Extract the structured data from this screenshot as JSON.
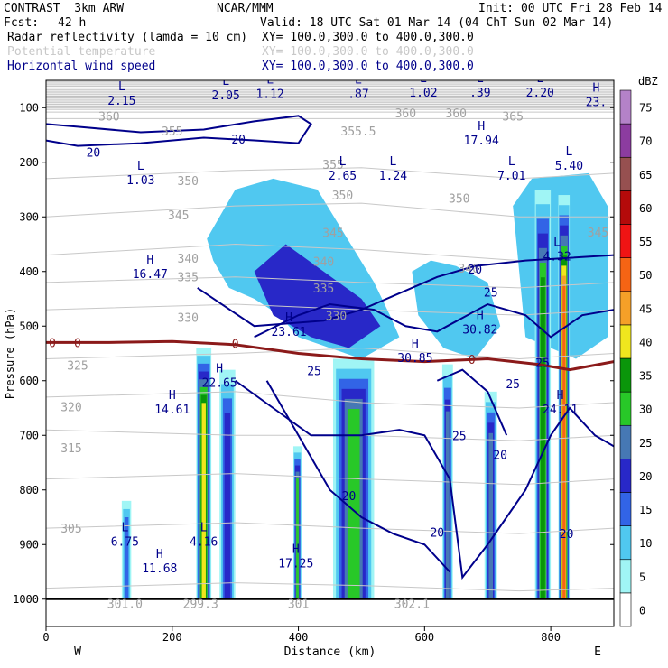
{
  "header": {
    "model": "CONTRAST  3km ARW",
    "org": "NCAR/MMM",
    "init": "Init: 00 UTC Fri 28 Feb 14",
    "fcst_label": "Fcst:",
    "fcst_value": "42 h",
    "valid": "Valid: 18 UTC Sat 01 Mar 14 (04 ChT Sun 02 Mar 14)",
    "fields": [
      {
        "name": "Radar reflectivity (lamda = 10 cm)",
        "xy": "XY= 100.0,300.0 to 400.0,300.0",
        "color": "#000000"
      },
      {
        "name": "Potential temperature",
        "xy": "XY= 100.0,300.0 to 400.0,300.0",
        "color": "#c8c8c8"
      },
      {
        "name": "Horizontal wind speed",
        "xy": "XY= 100.0,300.0 to 400.0,300.0",
        "color": "#00008b"
      }
    ]
  },
  "chart_data": {
    "type": "cross-section",
    "xlabel": "Distance (km)",
    "ylabel": "Pressure (hPa)",
    "xlim": [
      0,
      900
    ],
    "ylim": [
      1050,
      50
    ],
    "xticks": [
      0,
      200,
      400,
      600,
      800
    ],
    "yticks": [
      100,
      200,
      300,
      400,
      500,
      600,
      700,
      800,
      900,
      1000
    ],
    "west_label": "W",
    "east_label": "E",
    "colorbar": {
      "unit": "dBZ",
      "levels": [
        0,
        5,
        10,
        15,
        20,
        25,
        30,
        35,
        40,
        45,
        50,
        55,
        60,
        65,
        70,
        75
      ],
      "colors": [
        "#ffffff",
        "#a0f5f5",
        "#50c8f0",
        "#3264e6",
        "#2828c8",
        "#4678b4",
        "#28c828",
        "#0a960a",
        "#f0e61e",
        "#f5a028",
        "#f56414",
        "#f01414",
        "#b40a0a",
        "#965050",
        "#8c3ca0",
        "#b482c8"
      ]
    },
    "reflectivity_cells": [
      {
        "x0": 120,
        "x1": 135,
        "p_top": 820,
        "p_bot": 1000,
        "dbz": 15
      },
      {
        "x0": 238,
        "x1": 262,
        "p_top": 540,
        "p_bot": 1000,
        "dbz": 40
      },
      {
        "x0": 275,
        "x1": 300,
        "p_top": 580,
        "p_bot": 1000,
        "dbz": 20
      },
      {
        "x0": 392,
        "x1": 405,
        "p_top": 720,
        "p_bot": 1000,
        "dbz": 30
      },
      {
        "x0": 455,
        "x1": 520,
        "p_top": 560,
        "p_bot": 1000,
        "dbz": 30
      },
      {
        "x0": 628,
        "x1": 645,
        "p_top": 570,
        "p_bot": 1000,
        "dbz": 25
      },
      {
        "x0": 695,
        "x1": 715,
        "p_top": 620,
        "p_bot": 1000,
        "dbz": 25
      },
      {
        "x0": 775,
        "x1": 800,
        "p_top": 250,
        "p_bot": 1000,
        "dbz": 35
      },
      {
        "x0": 812,
        "x1": 830,
        "p_top": 260,
        "p_bot": 1000,
        "dbz": 50
      }
    ],
    "reflectivity_anvils": [
      {
        "x": [
          255,
          300,
          360,
          430,
          520,
          545,
          560,
          500,
          450,
          400,
          370,
          330,
          290,
          265
        ],
        "p": [
          340,
          250,
          230,
          250,
          420,
          480,
          520,
          560,
          540,
          520,
          480,
          450,
          430,
          380
        ],
        "dbz": 10
      },
      {
        "x": [
          330,
          380,
          440,
          500,
          530,
          480,
          420,
          360
        ],
        "p": [
          400,
          350,
          400,
          450,
          500,
          540,
          520,
          480
        ],
        "dbz": 20
      },
      {
        "x": [
          580,
          610,
          650,
          700,
          720,
          680,
          630,
          590
        ],
        "p": [
          400,
          380,
          390,
          420,
          500,
          560,
          540,
          480
        ],
        "dbz": 10
      },
      {
        "x": [
          740,
          770,
          860,
          890,
          890,
          840,
          760
        ],
        "p": [
          280,
          230,
          220,
          280,
          520,
          560,
          520
        ],
        "dbz": 10
      }
    ],
    "freezing_level": {
      "label": "0",
      "x": [
        0,
        100,
        200,
        300,
        400,
        500,
        600,
        700,
        780,
        830,
        900
      ],
      "p": [
        530,
        530,
        528,
        534,
        550,
        560,
        565,
        560,
        570,
        580,
        565
      ]
    },
    "theta_contours": [
      {
        "label": "365",
        "x": [
          0,
          900
        ],
        "p": [
          108,
          108
        ]
      },
      {
        "label": "360",
        "x": [
          0,
          900
        ],
        "p": [
          120,
          120
        ]
      },
      {
        "label": "355",
        "x": [
          0,
          900
        ],
        "p": [
          150,
          150
        ]
      },
      {
        "label": "350",
        "x": [
          0,
          300,
          500,
          750,
          900
        ],
        "p": [
          230,
          215,
          210,
          230,
          220
        ]
      },
      {
        "label": "345",
        "x": [
          0,
          300,
          500,
          750,
          900
        ],
        "p": [
          300,
          280,
          275,
          300,
          300
        ]
      },
      {
        "label": "340",
        "x": [
          0,
          300,
          500,
          750,
          900
        ],
        "p": [
          370,
          350,
          360,
          380,
          370
        ]
      },
      {
        "label": "335",
        "x": [
          0,
          300,
          500,
          750,
          900
        ],
        "p": [
          420,
          410,
          420,
          430,
          420
        ]
      },
      {
        "label": "330",
        "x": [
          0,
          300,
          500,
          750,
          900
        ],
        "p": [
          470,
          460,
          470,
          480,
          470
        ]
      },
      {
        "label": "325",
        "x": [
          0,
          300,
          500,
          750,
          900
        ],
        "p": [
          560,
          550,
          540,
          560,
          550
        ]
      },
      {
        "label": "320",
        "x": [
          0,
          300,
          500,
          750,
          900
        ],
        "p": [
          630,
          620,
          640,
          650,
          640
        ]
      },
      {
        "label": "315",
        "x": [
          0,
          300,
          500,
          750,
          900
        ],
        "p": [
          690,
          700,
          700,
          710,
          700
        ]
      },
      {
        "label": "310",
        "x": [
          0,
          300,
          500,
          750,
          900
        ],
        "p": [
          780,
          770,
          780,
          790,
          780
        ]
      },
      {
        "label": "305",
        "x": [
          0,
          300,
          500,
          750,
          900
        ],
        "p": [
          870,
          860,
          870,
          880,
          870
        ]
      },
      {
        "label": "300",
        "x": [
          0,
          300,
          500,
          750,
          900
        ],
        "p": [
          980,
          970,
          975,
          985,
          980
        ]
      }
    ],
    "wind_contours": [
      {
        "label": "20",
        "x": [
          0,
          50,
          150,
          250,
          330,
          400,
          420,
          400,
          330,
          250,
          150,
          50,
          0
        ],
        "p": [
          130,
          135,
          145,
          140,
          125,
          115,
          130,
          165,
          160,
          155,
          165,
          170,
          160
        ]
      },
      {
        "label": "20",
        "x": [
          240,
          330,
          440,
          500,
          560,
          620,
          680,
          760,
          900
        ],
        "p": [
          430,
          500,
          490,
          470,
          440,
          410,
          390,
          380,
          370
        ]
      },
      {
        "label": "25",
        "x": [
          330,
          400,
          450,
          520,
          570,
          620,
          700,
          760,
          800,
          850,
          900
        ],
        "p": [
          520,
          480,
          460,
          470,
          500,
          510,
          460,
          480,
          520,
          480,
          470
        ]
      },
      {
        "label": "20",
        "x": [
          300,
          360,
          420,
          500,
          560,
          600,
          640,
          660,
          700,
          760,
          800,
          830,
          870,
          900
        ],
        "p": [
          600,
          650,
          700,
          700,
          690,
          700,
          780,
          960,
          900,
          800,
          700,
          650,
          700,
          720
        ]
      },
      {
        "label": "20",
        "x": [
          350,
          400,
          450,
          500,
          550,
          600,
          640
        ],
        "p": [
          600,
          700,
          800,
          850,
          880,
          900,
          950
        ]
      },
      {
        "label": "25",
        "x": [
          620,
          660,
          700,
          730
        ],
        "p": [
          600,
          580,
          620,
          700
        ]
      }
    ],
    "hl_labels": [
      {
        "letter": "L",
        "value": "2.15",
        "x": 120,
        "p": 95
      },
      {
        "letter": "L",
        "value": "2.05",
        "x": 285,
        "p": 85
      },
      {
        "letter": "L",
        "value": "1.12",
        "x": 355,
        "p": 82
      },
      {
        "letter": "L",
        "value": ".87",
        "x": 495,
        "p": 82
      },
      {
        "letter": "L",
        "value": "1.02",
        "x": 598,
        "p": 80
      },
      {
        "letter": "L",
        "value": ".39",
        "x": 688,
        "p": 80
      },
      {
        "letter": "L",
        "value": "2.20",
        "x": 783,
        "p": 80
      },
      {
        "letter": "H",
        "value": "23.",
        "x": 872,
        "p": 97
      },
      {
        "letter": "H",
        "value": "17.94",
        "x": 690,
        "p": 167
      },
      {
        "letter": "L",
        "value": "1.03",
        "x": 150,
        "p": 240
      },
      {
        "letter": "L",
        "value": "2.65",
        "x": 470,
        "p": 232
      },
      {
        "letter": "L",
        "value": "1.24",
        "x": 550,
        "p": 232
      },
      {
        "letter": "L",
        "value": "7.01",
        "x": 738,
        "p": 232
      },
      {
        "letter": "L",
        "value": "5.40",
        "x": 829,
        "p": 214
      },
      {
        "letter": "H",
        "value": "16.47",
        "x": 165,
        "p": 412
      },
      {
        "letter": "L",
        "value": "4.32",
        "x": 810,
        "p": 380
      },
      {
        "letter": "H",
        "value": "23.61",
        "x": 385,
        "p": 518
      },
      {
        "letter": "H",
        "value": "30.82",
        "x": 688,
        "p": 514
      },
      {
        "letter": "H",
        "value": "30.85",
        "x": 585,
        "p": 566
      },
      {
        "letter": "H",
        "value": "22.65",
        "x": 275,
        "p": 611
      },
      {
        "letter": "H",
        "value": "14.61",
        "x": 200,
        "p": 660
      },
      {
        "letter": "H",
        "value": "24.11",
        "x": 815,
        "p": 660
      },
      {
        "letter": "L",
        "value": "6.75",
        "x": 125,
        "p": 902
      },
      {
        "letter": "L",
        "value": "4.16",
        "x": 250,
        "p": 902
      },
      {
        "letter": "H",
        "value": "17.25",
        "x": 396,
        "p": 942
      },
      {
        "letter": "H",
        "value": "11.68",
        "x": 180,
        "p": 951
      }
    ],
    "contour_labels": [
      {
        "text": "360",
        "x": 100,
        "p": 118,
        "kind": "theta"
      },
      {
        "text": "355",
        "x": 200,
        "p": 145,
        "kind": "theta"
      },
      {
        "text": "355.5",
        "x": 495,
        "p": 145,
        "kind": "theta"
      },
      {
        "text": "360",
        "x": 570,
        "p": 112,
        "kind": "theta"
      },
      {
        "text": "360",
        "x": 650,
        "p": 112,
        "kind": "theta"
      },
      {
        "text": "365",
        "x": 740,
        "p": 118,
        "kind": "theta"
      },
      {
        "text": "355",
        "x": 455,
        "p": 206,
        "kind": "theta"
      },
      {
        "text": "350",
        "x": 225,
        "p": 236,
        "kind": "theta"
      },
      {
        "text": "350",
        "x": 470,
        "p": 262,
        "kind": "theta"
      },
      {
        "text": "350",
        "x": 655,
        "p": 268,
        "kind": "theta"
      },
      {
        "text": "345",
        "x": 210,
        "p": 299,
        "kind": "theta"
      },
      {
        "text": "345",
        "x": 455,
        "p": 331,
        "kind": "theta"
      },
      {
        "text": "345",
        "x": 875,
        "p": 330,
        "kind": "theta"
      },
      {
        "text": "340",
        "x": 225,
        "p": 378,
        "kind": "theta"
      },
      {
        "text": "340",
        "x": 440,
        "p": 384,
        "kind": "theta"
      },
      {
        "text": "340",
        "x": 670,
        "p": 396,
        "kind": "theta"
      },
      {
        "text": "335",
        "x": 225,
        "p": 412,
        "kind": "theta"
      },
      {
        "text": "335",
        "x": 440,
        "p": 433,
        "kind": "theta"
      },
      {
        "text": "330",
        "x": 225,
        "p": 486,
        "kind": "theta"
      },
      {
        "text": "330",
        "x": 460,
        "p": 483,
        "kind": "theta"
      },
      {
        "text": "325",
        "x": 50,
        "p": 574,
        "kind": "theta"
      },
      {
        "text": "320",
        "x": 40,
        "p": 650,
        "kind": "theta"
      },
      {
        "text": "315",
        "x": 40,
        "p": 725,
        "kind": "theta"
      },
      {
        "text": "305",
        "x": 40,
        "p": 872,
        "kind": "theta"
      },
      {
        "text": "301.0",
        "x": 125,
        "p": 1010,
        "kind": "theta"
      },
      {
        "text": "299.3",
        "x": 245,
        "p": 1010,
        "kind": "theta"
      },
      {
        "text": "301",
        "x": 400,
        "p": 1010,
        "kind": "theta"
      },
      {
        "text": "302.1",
        "x": 580,
        "p": 1010,
        "kind": "theta"
      },
      {
        "text": "20",
        "x": 75,
        "p": 184,
        "kind": "wind"
      },
      {
        "text": "20",
        "x": 305,
        "p": 160,
        "kind": "wind"
      },
      {
        "text": "20",
        "x": 680,
        "p": 398,
        "kind": "wind"
      },
      {
        "text": "25",
        "x": 705,
        "p": 440,
        "kind": "wind"
      },
      {
        "text": "25",
        "x": 740,
        "p": 608,
        "kind": "wind"
      },
      {
        "text": "25",
        "x": 787,
        "p": 569,
        "kind": "wind"
      },
      {
        "text": "25",
        "x": 655,
        "p": 703,
        "kind": "wind"
      },
      {
        "text": "20",
        "x": 480,
        "p": 813,
        "kind": "wind"
      },
      {
        "text": "20",
        "x": 620,
        "p": 880,
        "kind": "wind"
      },
      {
        "text": "20",
        "x": 720,
        "p": 738,
        "kind": "wind"
      },
      {
        "text": "20",
        "x": 825,
        "p": 882,
        "kind": "wind"
      },
      {
        "text": "25",
        "x": 425,
        "p": 584,
        "kind": "wind"
      },
      {
        "text": "0",
        "x": 10,
        "p": 533,
        "kind": "freeze"
      },
      {
        "text": "0",
        "x": 50,
        "p": 533,
        "kind": "freeze"
      },
      {
        "text": "0",
        "x": 300,
        "p": 534,
        "kind": "freeze"
      },
      {
        "text": "0",
        "x": 675,
        "p": 563,
        "kind": "freeze"
      }
    ],
    "grid": false
  }
}
